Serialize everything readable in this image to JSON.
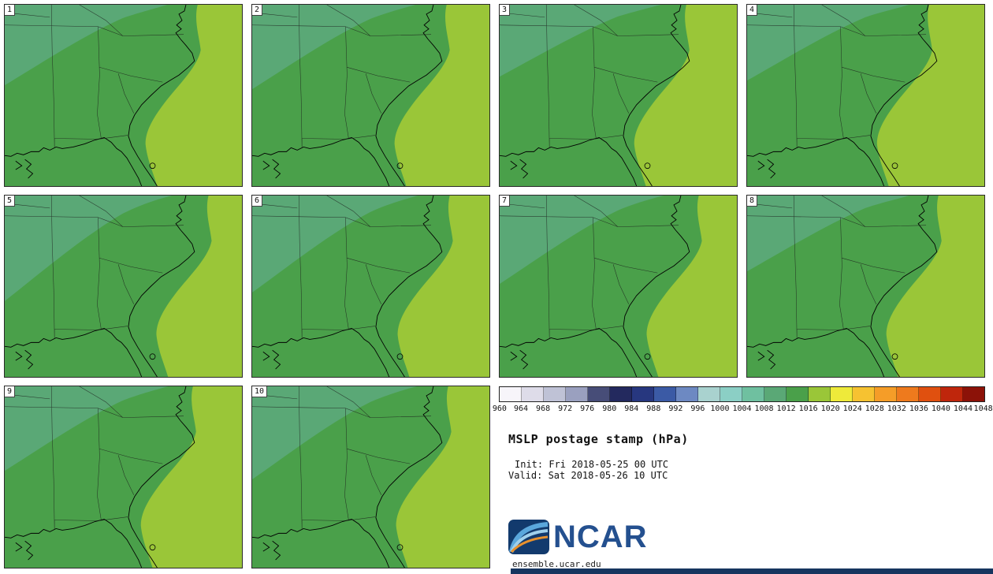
{
  "figure": {
    "title": "MSLP postage stamp (hPa)",
    "init_line": "Init: Fri 2018-05-25 00 UTC",
    "valid_line": "Valid: Sat 2018-05-26 10 UTC"
  },
  "panels": [
    {
      "label": "1"
    },
    {
      "label": "2"
    },
    {
      "label": "3"
    },
    {
      "label": "4"
    },
    {
      "label": "5"
    },
    {
      "label": "6"
    },
    {
      "label": "7"
    },
    {
      "label": "8"
    },
    {
      "label": "9"
    },
    {
      "label": "10"
    }
  ],
  "colorbar": {
    "units": "hPa",
    "ticks": [
      "960",
      "964",
      "968",
      "972",
      "976",
      "980",
      "984",
      "988",
      "992",
      "996",
      "1000",
      "1004",
      "1008",
      "1012",
      "1016",
      "1020",
      "1024",
      "1028",
      "1032",
      "1036",
      "1040",
      "1044",
      "1048"
    ],
    "colors": [
      "#f7f5fa",
      "#dedce9",
      "#bfc2d6",
      "#9aa0bf",
      "#474d78",
      "#23295e",
      "#27377f",
      "#3b5aa5",
      "#6d89c2",
      "#a9d2cf",
      "#8bcfc5",
      "#6fc0a0",
      "#5aa876",
      "#4aa04a",
      "#9ac638",
      "#eeea3a",
      "#f6c231",
      "#f59d28",
      "#ee7a1d",
      "#e0500f",
      "#bf260c",
      "#8c1208"
    ]
  },
  "map": {
    "land_color": "#4aa04a",
    "high_color": "#9ac638",
    "low_band_color": "#5aa876",
    "coast_color": "#000000",
    "border_color": "#1a1a1a"
  },
  "branding": {
    "logo": "NCAR",
    "url": "ensemble.ucar.edu"
  }
}
